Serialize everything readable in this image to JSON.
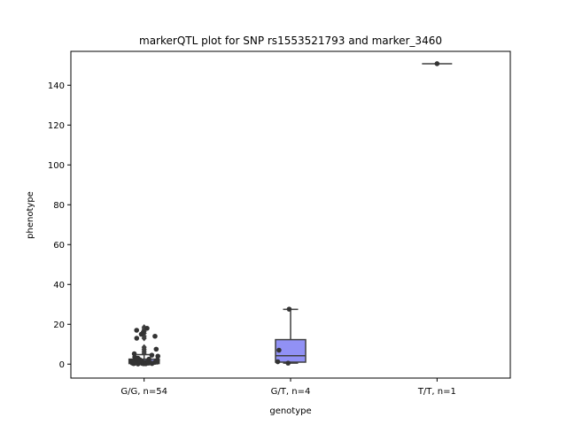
{
  "chart_data": {
    "type": "box",
    "title": "markerQTL plot for SNP rs1553521793 and marker_3460",
    "xlabel": "genotype",
    "ylabel": "phenotype",
    "ylim": [
      -7,
      157
    ],
    "yticks": [
      0,
      20,
      40,
      60,
      80,
      100,
      120,
      140
    ],
    "grid": false,
    "categories": [
      "G/G, n=54",
      "G/T, n=4",
      "T/T, n=1"
    ],
    "box_color": "#9191f5",
    "line_color": "#3f3f3f",
    "point_color": "#333333",
    "boxes": [
      {
        "category": "G/G, n=54",
        "whisker_low": 0,
        "q1": 0.3,
        "median": 0.9,
        "q3": 2.5,
        "whisker_high": 4.8,
        "outliers": [
          5.5,
          6.5,
          7.5,
          8.5,
          13,
          14,
          15.5,
          16.5,
          17.5,
          18.5
        ]
      },
      {
        "category": "G/T, n=4",
        "whisker_low": 0.5,
        "q1": 1,
        "median": 4.2,
        "q3": 12.3,
        "whisker_high": 27.5,
        "outliers": []
      },
      {
        "category": "T/T, n=1",
        "whisker_low": 150.8,
        "q1": 150.8,
        "median": 150.8,
        "q3": 150.8,
        "whisker_high": 150.8,
        "outliers": []
      }
    ],
    "points": [
      {
        "category": 0,
        "values": [
          0.2,
          0.4,
          0.6,
          0.8,
          0.3,
          0.5,
          0.7,
          0.9,
          1.0,
          1.2,
          0.1,
          0.3,
          0.5,
          0.6,
          0.8,
          1.1,
          1.3,
          0.4,
          0.2,
          0.7,
          0.9,
          1.5,
          1.8,
          2.0,
          0.3,
          0.6,
          1.0,
          1.4,
          0.5,
          0.8,
          2.5,
          3.0,
          3.5,
          4.0,
          1.2,
          0.9,
          0.4,
          0.6,
          5.2,
          4.5,
          2.2,
          1.6,
          0.7,
          7.5,
          13.0,
          14.0,
          16.0,
          17.0,
          18.0,
          15.0,
          0.5,
          1.0,
          0.3,
          2.8
        ]
      },
      {
        "category": 1,
        "values": [
          27.6,
          7.0,
          1.2,
          0.5
        ]
      },
      {
        "category": 2,
        "values": [
          150.8
        ]
      }
    ]
  }
}
